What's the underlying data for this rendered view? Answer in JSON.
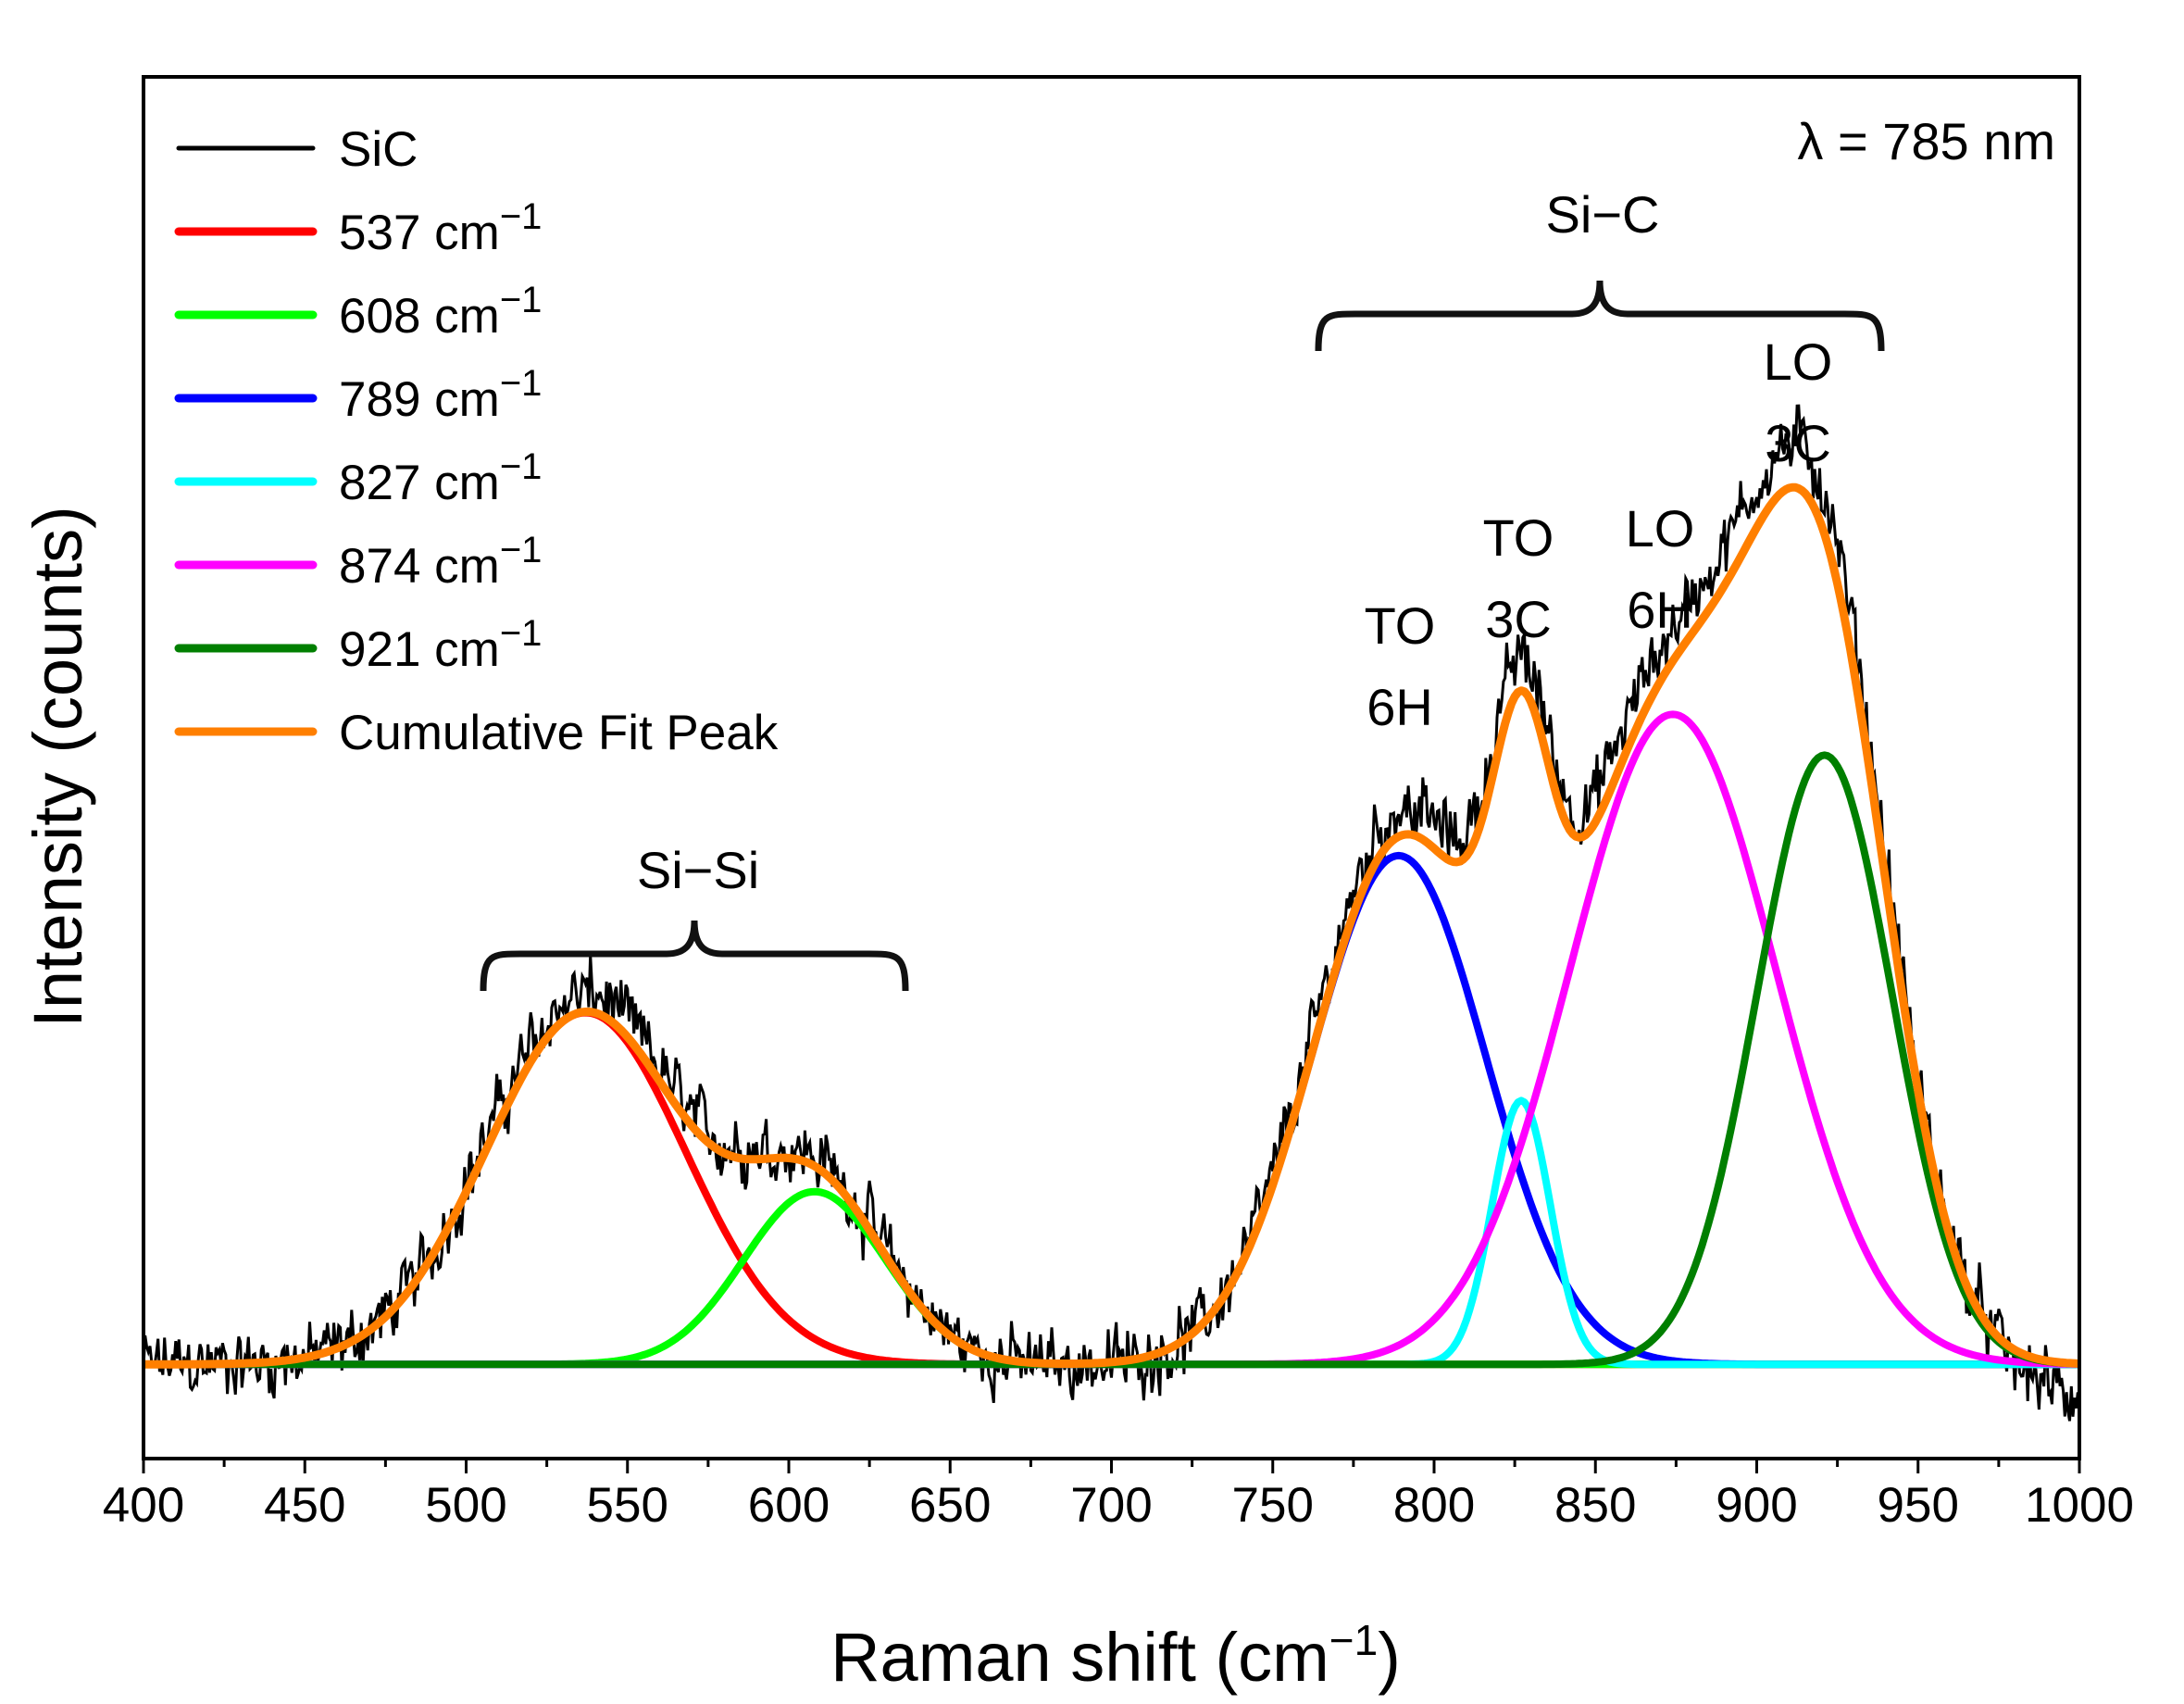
{
  "chart_data": {
    "type": "line",
    "title": "",
    "xlabel": "Raman shift (cm",
    "xlabel_sup": "−1",
    "xlabel_close": ")",
    "ylabel": "Intensity (counts)",
    "xlim": [
      400,
      1000
    ],
    "ylim": [
      -0.15,
      2.05
    ],
    "grid": false,
    "x_major_ticks": [
      "400",
      "450",
      "500",
      "550",
      "600",
      "650",
      "700",
      "750",
      "800",
      "850",
      "900",
      "950",
      "1000"
    ],
    "legend_position": "top-left",
    "annotations": {
      "laser": "λ = 785 nm",
      "si_si": "Si−Si",
      "si_c": "Si−C",
      "to6h": [
        "TO",
        "6H"
      ],
      "to3c": [
        "TO",
        "3C"
      ],
      "lo6h": [
        "LO",
        "6H"
      ],
      "lo3c": [
        "LO",
        "3C"
      ]
    },
    "series": [
      {
        "name": "SiC",
        "unit": "",
        "color": "#000000",
        "kind": "noisy"
      },
      {
        "name": "537 cm",
        "unit": "−1",
        "color": "#ff0000",
        "center": 537,
        "amplitude": 0.56,
        "sigma": 31
      },
      {
        "name": "608 cm",
        "unit": "−1",
        "color": "#00ff00",
        "center": 608,
        "amplitude": 0.275,
        "sigma": 22
      },
      {
        "name": "789 cm",
        "unit": "−1",
        "color": "#0000ff",
        "center": 789,
        "amplitude": 0.81,
        "sigma": 27
      },
      {
        "name": "827 cm",
        "unit": "−1",
        "color": "#00ffff",
        "center": 827,
        "amplitude": 0.42,
        "sigma": 9
      },
      {
        "name": "874 cm",
        "unit": "−1",
        "color": "#ff00ff",
        "center": 874,
        "amplitude": 1.035,
        "sigma": 32
      },
      {
        "name": "921 cm",
        "unit": "−1",
        "color": "#007f00",
        "center": 921,
        "amplitude": 0.97,
        "sigma": 21
      },
      {
        "name": "Cumulative Fit Peak",
        "unit": "",
        "color": "#ff7f00",
        "kind": "sum"
      }
    ]
  }
}
